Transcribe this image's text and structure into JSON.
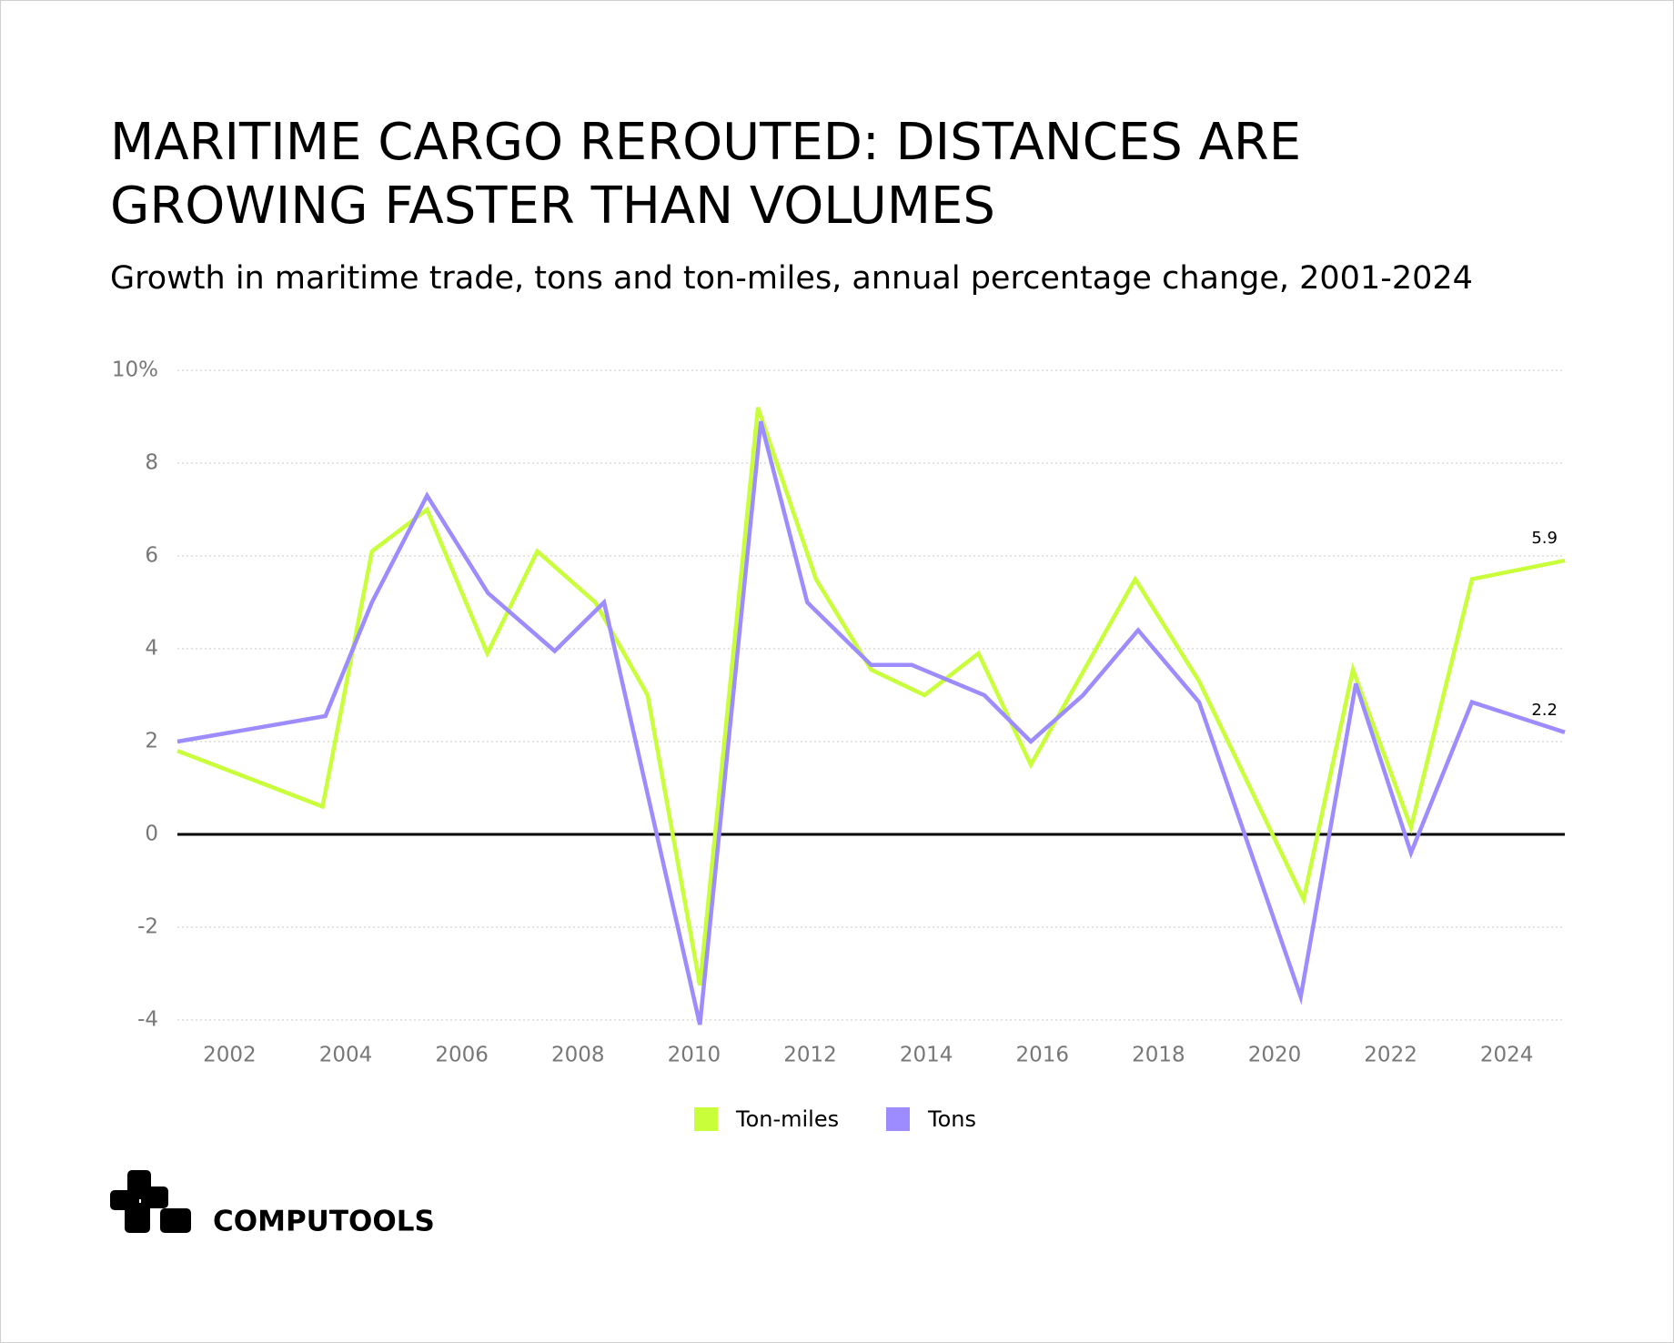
{
  "chart_data": {
    "type": "line",
    "title": "MARITIME CARGO REROUTED: DISTANCES ARE GROWING FASTER THAN VOLUMES",
    "subtitle": "Growth in maritime trade, tons and ton-miles, annual percentage change, 2001-2024",
    "xlim": [
      2001.1,
      2025.0
    ],
    "xticks": [
      2002,
      2004,
      2006,
      2008,
      2010,
      2012,
      2014,
      2016,
      2018,
      2020,
      2022,
      2024
    ],
    "ylim": [
      -4,
      10
    ],
    "yticks": [
      {
        "value": 10,
        "label": "10%"
      },
      8,
      6,
      4,
      2,
      0,
      -2,
      -4
    ],
    "grid": true,
    "series": [
      {
        "name": "Ton-miles",
        "color": "#c9ff3a",
        "x": [
          2001.1,
          2003.6,
          2004.45,
          2005.4,
          2006.44,
          2007.3,
          2008.3,
          2009.2,
          2010.1,
          2011.1,
          2012.1,
          2013.05,
          2013.97,
          2014.9,
          2015.8,
          2017.6,
          2018.7,
          2020.5,
          2021.35,
          2022.35,
          2023.4,
          2025.0
        ],
        "values": [
          1.8,
          0.6,
          6.1,
          7.0,
          3.9,
          6.1,
          5.0,
          3.0,
          -3.25,
          9.2,
          5.5,
          3.55,
          3.0,
          3.9,
          1.5,
          5.5,
          3.3,
          -1.4,
          3.55,
          0.15,
          5.5,
          5.9
        ]
      },
      {
        "name": "Tons",
        "color": "#9c8cff",
        "x": [
          2001.1,
          2003.65,
          2004.45,
          2005.4,
          2006.45,
          2007.6,
          2008.45,
          2010.1,
          2011.15,
          2011.95,
          2013.05,
          2013.75,
          2015.0,
          2015.8,
          2016.7,
          2017.65,
          2018.7,
          2020.45,
          2021.4,
          2022.35,
          2023.4,
          2025.0
        ],
        "values": [
          2.0,
          2.55,
          5.0,
          7.3,
          5.2,
          3.95,
          5.0,
          -4.1,
          8.9,
          5.0,
          3.65,
          3.65,
          3.0,
          2.0,
          3.0,
          4.4,
          2.85,
          -3.5,
          3.25,
          -0.4,
          2.85,
          2.2
        ]
      }
    ]
  },
  "footer": {
    "brand": "COMPUTOOLS"
  }
}
